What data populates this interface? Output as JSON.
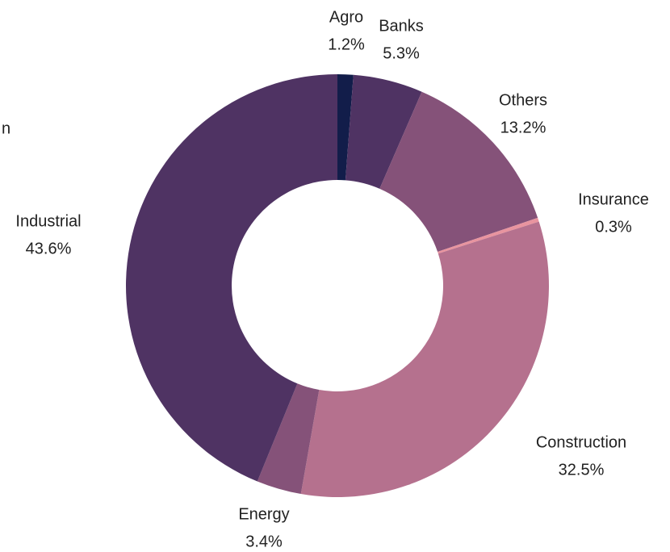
{
  "chart_data": {
    "type": "pie",
    "annotation": "n",
    "categories": [
      "Agro",
      "Banks",
      "Others",
      "Insurance",
      "Construction",
      "Energy",
      "Industrial"
    ],
    "values": [
      1.2,
      5.3,
      13.2,
      0.3,
      32.5,
      3.4,
      43.6
    ],
    "value_labels": [
      "1.2%",
      "5.3%",
      "13.2%",
      "0.3%",
      "32.5%",
      "3.4%",
      "43.6%"
    ],
    "colors": [
      "#121d4a",
      "#4f3363",
      "#855279",
      "#e8949f",
      "#b5718e",
      "#855279",
      "#4f3363"
    ],
    "donut": true
  }
}
